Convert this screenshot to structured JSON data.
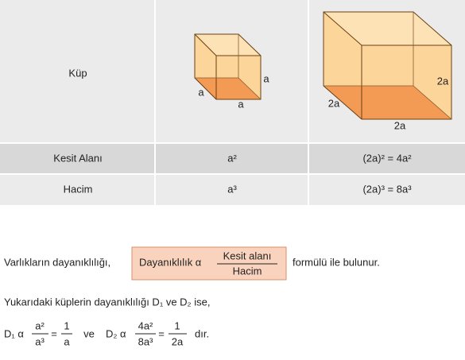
{
  "table": {
    "header_row": {
      "label": "Küp",
      "cube_small": {
        "edges": [
          "a",
          "a",
          "a"
        ]
      },
      "cube_large": {
        "edges": [
          "2a",
          "2a",
          "2a"
        ]
      }
    },
    "rows": [
      [
        "Kesit Alanı",
        "a²",
        "(2a)² = 4a²"
      ],
      [
        "Hacim",
        "a³",
        "(2a)³ = 8a³"
      ]
    ]
  },
  "text": {
    "intro": "Varlıkların dayanıklılığı,",
    "formula": {
      "lhs": "Dayanıklılık α",
      "numerator": "Kesit alanı",
      "denominator": "Hacim"
    },
    "after": "formülü ile bulunur.",
    "line2": "Yukarıdaki küplerin dayanıklılığı D₁ ve D₂ ise,",
    "d1": {
      "lhs": "D₁ α",
      "num1": "a²",
      "den1": "a³",
      "eq": "=",
      "num2": "1",
      "den2": "a"
    },
    "mid": "ve",
    "d2": {
      "lhs": "D₂ α",
      "num1": "4a²",
      "den1": "8a³",
      "eq": "=",
      "num2": "1",
      "den2": "2a"
    },
    "end": "dır."
  }
}
